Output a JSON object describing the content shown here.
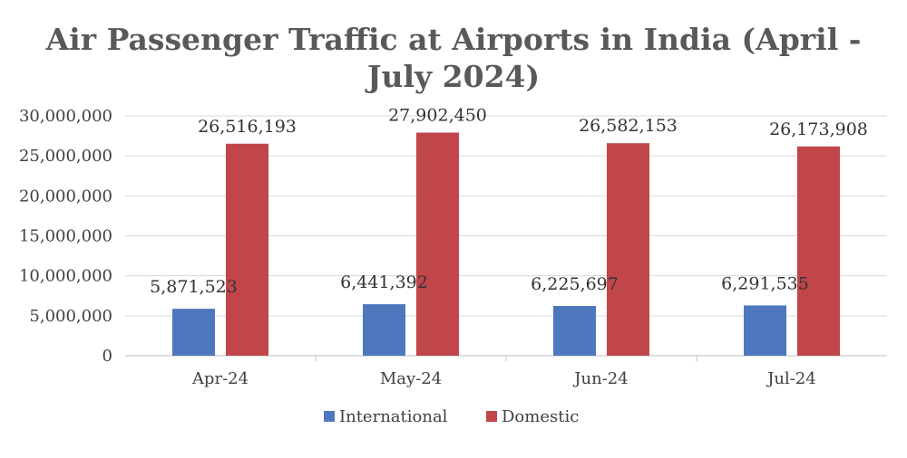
{
  "chart_data": {
    "type": "bar",
    "title_lines": [
      "Air Passenger Traffic at Airports in India (April -",
      "July 2024)"
    ],
    "categories": [
      "Apr-24",
      "May-24",
      "Jun-24",
      "Jul-24"
    ],
    "series": [
      {
        "name": "International",
        "color": "#4f77be",
        "values": [
          5871523,
          6441392,
          6225697,
          6291535
        ],
        "labels": [
          "5,871,523",
          "6,441,392",
          "6,225,697",
          "6,291,535"
        ]
      },
      {
        "name": "Domestic",
        "color": "#c0464a",
        "values": [
          26516193,
          27902450,
          26582153,
          26173908
        ],
        "labels": [
          "26,516,193",
          "27,902,450",
          "26,582,153",
          "26,173,908"
        ]
      }
    ],
    "ylim": [
      0,
      30000000
    ],
    "yticks": [
      0,
      5000000,
      10000000,
      15000000,
      20000000,
      25000000,
      30000000
    ],
    "ytick_labels": [
      "0",
      "5,000,000",
      "10,000,000",
      "15,000,000",
      "20,000,000",
      "25,000,000",
      "30,000,000"
    ],
    "grid": true,
    "legend_position": "bottom"
  }
}
